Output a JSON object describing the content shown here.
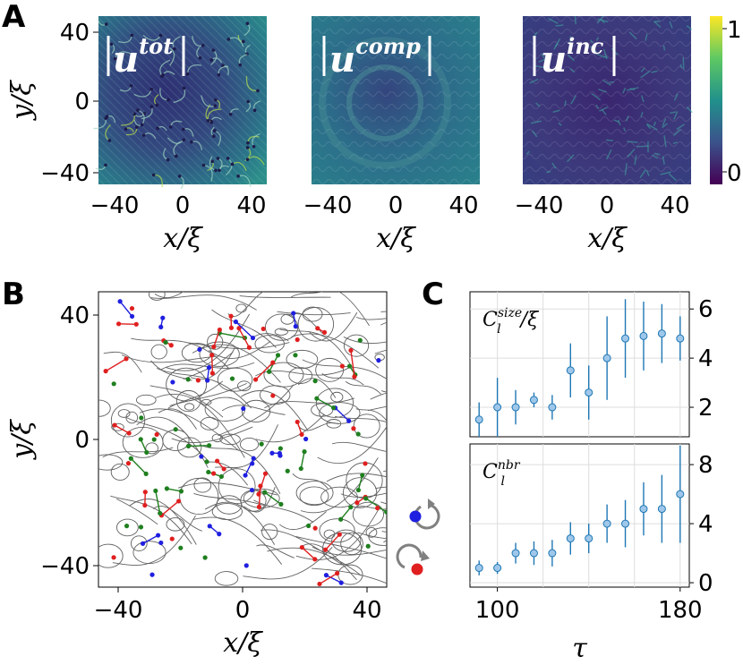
{
  "panels": {
    "a": {
      "letter": "A",
      "heatmaps": [
        {
          "label_base": "u",
          "label_sup": "tot"
        },
        {
          "label_base": "u",
          "label_sup": "comp"
        },
        {
          "label_base": "u",
          "label_sup": "inc"
        }
      ],
      "colorbar": {
        "ticks": [
          "1",
          "0"
        ],
        "colormap": "viridis"
      },
      "xticks": [
        "−40",
        "0",
        "40"
      ],
      "yticks": [
        "40",
        "0",
        "−40"
      ],
      "xlabel": "x/ξ",
      "ylabel": "y/ξ"
    },
    "b": {
      "letter": "B",
      "xticks": [
        "−40",
        "0",
        "40"
      ],
      "yticks": [
        "40",
        "0",
        "−40"
      ],
      "xlabel": "x/ξ",
      "ylabel": "y/ξ",
      "legend": [
        {
          "icon": "clockwise-vortex-icon",
          "color": "#1f1fe0"
        },
        {
          "icon": "anticlockwise-vortex-icon",
          "color": "#e01f1f"
        }
      ],
      "colors": {
        "positive": "#e01f1f",
        "negative": "#1f1fe0",
        "dipole": "#1f7f1f",
        "streamline": "#606060"
      }
    },
    "c": {
      "letter": "C"
    }
  },
  "chart_data": [
    {
      "type": "scatter",
      "title": "",
      "label_base": "C",
      "label_sub": "l",
      "label_sup": "size",
      "label_suffix": "/ξ",
      "x": [
        92,
        100,
        108,
        116,
        124,
        132,
        140,
        148,
        156,
        164,
        172,
        180
      ],
      "y": [
        1.5,
        2.0,
        2.0,
        2.3,
        2.0,
        3.5,
        2.6,
        4.0,
        4.8,
        4.9,
        5.0,
        4.8
      ],
      "yerr": [
        0.7,
        1.2,
        0.7,
        0.3,
        0.5,
        1.1,
        1.1,
        1.7,
        1.6,
        1.4,
        1.2,
        0.9
      ],
      "xlim": [
        88,
        184
      ],
      "ylim": [
        0.8,
        6.7
      ],
      "yticks": [
        2,
        4,
        6
      ],
      "grid": true,
      "color": "#1f77b4"
    },
    {
      "type": "scatter",
      "title": "",
      "label_base": "C",
      "label_sub": "l",
      "label_sup": "nbr",
      "label_suffix": "",
      "x": [
        92,
        100,
        108,
        116,
        124,
        132,
        140,
        148,
        156,
        164,
        172,
        180
      ],
      "y": [
        1.0,
        1.0,
        2.0,
        2.0,
        2.0,
        3.0,
        3.0,
        4.0,
        4.0,
        5.0,
        5.0,
        6.0
      ],
      "yerr": [
        0.5,
        0.4,
        0.7,
        0.8,
        0.9,
        1.1,
        1.0,
        1.3,
        1.6,
        1.8,
        2.3,
        3.3
      ],
      "xlim": [
        88,
        184
      ],
      "ylim": [
        -0.3,
        9.4
      ],
      "yticks": [
        0,
        4,
        8
      ],
      "xticks": [
        "100",
        "180"
      ],
      "xtick_values": [
        100,
        180
      ],
      "xlabel": "τ",
      "grid": true,
      "color": "#1f77b4"
    }
  ]
}
